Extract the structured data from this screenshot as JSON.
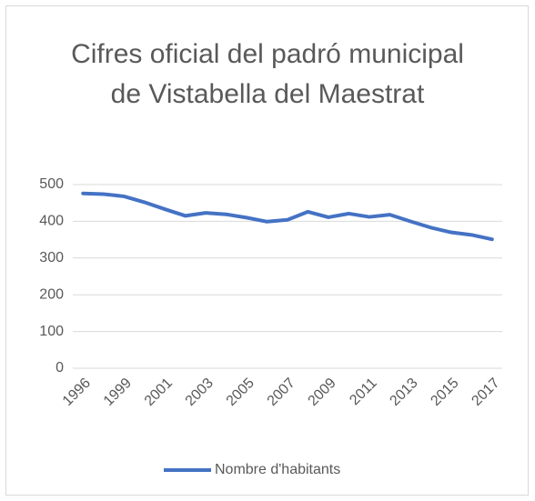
{
  "chart_data": {
    "type": "line",
    "title": "Cifres oficial del padró municipal de Vistabella del Maestrat",
    "categories": [
      "1996",
      null,
      "1999",
      null,
      "2001",
      null,
      "2003",
      null,
      "2005",
      null,
      "2007",
      null,
      "2009",
      null,
      "2011",
      null,
      "2013",
      null,
      "2015",
      null,
      "2017"
    ],
    "series": [
      {
        "name": "Nombre d'habitants",
        "color": "#4472c4",
        "values": [
          476,
          474,
          468,
          452,
          433,
          415,
          423,
          419,
          410,
          399,
          404,
          426,
          411,
          421,
          412,
          418,
          400,
          383,
          370,
          363,
          351
        ]
      }
    ],
    "ylim": [
      0,
      500
    ],
    "yticks": [
      0,
      100,
      200,
      300,
      400,
      500
    ],
    "grid": true,
    "legend": "bottom"
  }
}
